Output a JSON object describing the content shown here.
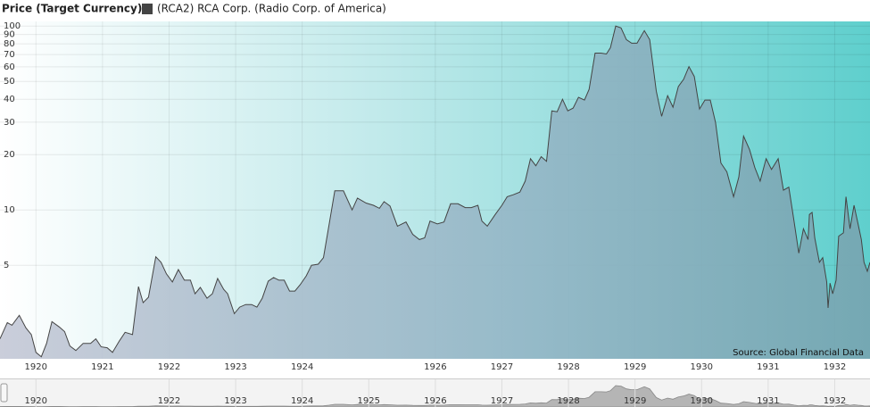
{
  "chart_data": {
    "type": "area",
    "log_scale": true,
    "grid": true,
    "legend_title": "Price (Target Currency)",
    "source": "Source: Global Financial Data",
    "xlim": [
      1919.46,
      1932.53
    ],
    "xticks": [
      1920,
      1921,
      1922,
      1923,
      1924,
      1926,
      1927,
      1928,
      1929,
      1930,
      1931,
      1932
    ],
    "ylim": [
      1.55,
      106
    ],
    "yticks": [
      5,
      10,
      20,
      30,
      40,
      50,
      60,
      70,
      80,
      90,
      100
    ],
    "x": [
      1919.46,
      1919.57,
      1919.64,
      1919.75,
      1919.85,
      1919.93,
      1920.0,
      1920.08,
      1920.16,
      1920.24,
      1920.35,
      1920.43,
      1920.51,
      1920.6,
      1920.71,
      1920.82,
      1920.9,
      1920.98,
      1921.07,
      1921.15,
      1921.25,
      1921.34,
      1921.45,
      1921.54,
      1921.61,
      1921.69,
      1921.8,
      1921.88,
      1921.96,
      1922.05,
      1922.14,
      1922.23,
      1922.32,
      1922.39,
      1922.47,
      1922.57,
      1922.65,
      1922.73,
      1922.82,
      1922.88,
      1922.98,
      1923.06,
      1923.15,
      1923.24,
      1923.32,
      1923.4,
      1923.49,
      1923.57,
      1923.65,
      1923.73,
      1923.81,
      1923.89,
      1923.97,
      1924.06,
      1924.14,
      1924.24,
      1924.32,
      1924.4,
      1924.49,
      1924.62,
      1924.75,
      1924.83,
      1924.96,
      1925.07,
      1925.16,
      1925.23,
      1925.32,
      1925.43,
      1925.56,
      1925.66,
      1925.76,
      1925.84,
      1925.92,
      1926.03,
      1926.13,
      1926.23,
      1926.34,
      1926.45,
      1926.54,
      1926.64,
      1926.7,
      1926.78,
      1926.9,
      1927.0,
      1927.08,
      1927.17,
      1927.27,
      1927.35,
      1927.43,
      1927.51,
      1927.59,
      1927.67,
      1927.75,
      1927.83,
      1927.91,
      1927.99,
      1928.07,
      1928.15,
      1928.24,
      1928.31,
      1928.4,
      1928.49,
      1928.57,
      1928.63,
      1928.71,
      1928.79,
      1928.87,
      1928.95,
      1929.03,
      1929.14,
      1929.22,
      1929.32,
      1929.4,
      1929.49,
      1929.57,
      1929.65,
      1929.73,
      1929.81,
      1929.89,
      1929.97,
      1930.05,
      1930.13,
      1930.21,
      1930.29,
      1930.38,
      1930.48,
      1930.56,
      1930.63,
      1930.72,
      1930.8,
      1930.88,
      1930.97,
      1931.05,
      1931.15,
      1931.23,
      1931.31,
      1931.39,
      1931.46,
      1931.53,
      1931.6,
      1931.62,
      1931.66,
      1931.7,
      1931.77,
      1931.82,
      1931.88,
      1931.9,
      1931.93,
      1931.97,
      1932.02,
      1932.06,
      1932.13,
      1932.17,
      1932.23,
      1932.29,
      1932.35,
      1932.4,
      1932.44,
      1932.49,
      1932.53
    ],
    "series": [
      {
        "name": "(RCA2) RCA Corp. (Radio Corp. of America)",
        "color": "#444444",
        "values": [
          1.99,
          2.44,
          2.36,
          2.67,
          2.28,
          2.1,
          1.68,
          1.59,
          1.88,
          2.47,
          2.31,
          2.18,
          1.82,
          1.72,
          1.88,
          1.88,
          1.99,
          1.8,
          1.78,
          1.68,
          1.93,
          2.16,
          2.1,
          3.83,
          3.13,
          3.35,
          5.56,
          5.19,
          4.49,
          4.06,
          4.74,
          4.15,
          4.15,
          3.5,
          3.79,
          3.31,
          3.5,
          4.24,
          3.7,
          3.5,
          2.73,
          2.96,
          3.06,
          3.06,
          2.96,
          3.31,
          4.1,
          4.29,
          4.15,
          4.15,
          3.62,
          3.62,
          3.92,
          4.38,
          5.0,
          5.07,
          5.5,
          8.16,
          12.7,
          12.7,
          10,
          11.6,
          10.9,
          10.6,
          10.2,
          11.1,
          10.5,
          8.16,
          8.6,
          7.37,
          6.9,
          7.05,
          8.7,
          8.4,
          8.6,
          10.8,
          10.8,
          10.3,
          10.3,
          10.6,
          8.7,
          8.16,
          9.45,
          10.6,
          11.8,
          12.1,
          12.5,
          14.35,
          19.0,
          17.4,
          19.5,
          18.4,
          34.6,
          34.2,
          40.0,
          34.6,
          35.8,
          41,
          39.6,
          45.3,
          71.3,
          71.3,
          70.5,
          76.3,
          100,
          97.7,
          84.4,
          80.7,
          80.7,
          94.5,
          84.4,
          44.3,
          32.3,
          41.8,
          36.2,
          46.9,
          51.3,
          60.2,
          53.2,
          35.4,
          39.6,
          39.6,
          29.9,
          18.0,
          16.1,
          11.8,
          15.1,
          25.2,
          21.3,
          17.0,
          14.35,
          19.0,
          16.6,
          19.0,
          12.8,
          13.3,
          8.6,
          5.82,
          7.9,
          6.9,
          9.45,
          9.7,
          7.05,
          5.19,
          5.5,
          4.06,
          2.93,
          4.0,
          3.5,
          4.15,
          7.2,
          7.5,
          11.8,
          7.9,
          10.6,
          8.4,
          6.9,
          5.19,
          4.64,
          5.19
        ]
      }
    ],
    "navigator": {
      "xticks": [
        1920,
        1922,
        1923,
        1924,
        1925,
        1926,
        1927,
        1928,
        1929,
        1930,
        1931,
        1932
      ]
    }
  }
}
